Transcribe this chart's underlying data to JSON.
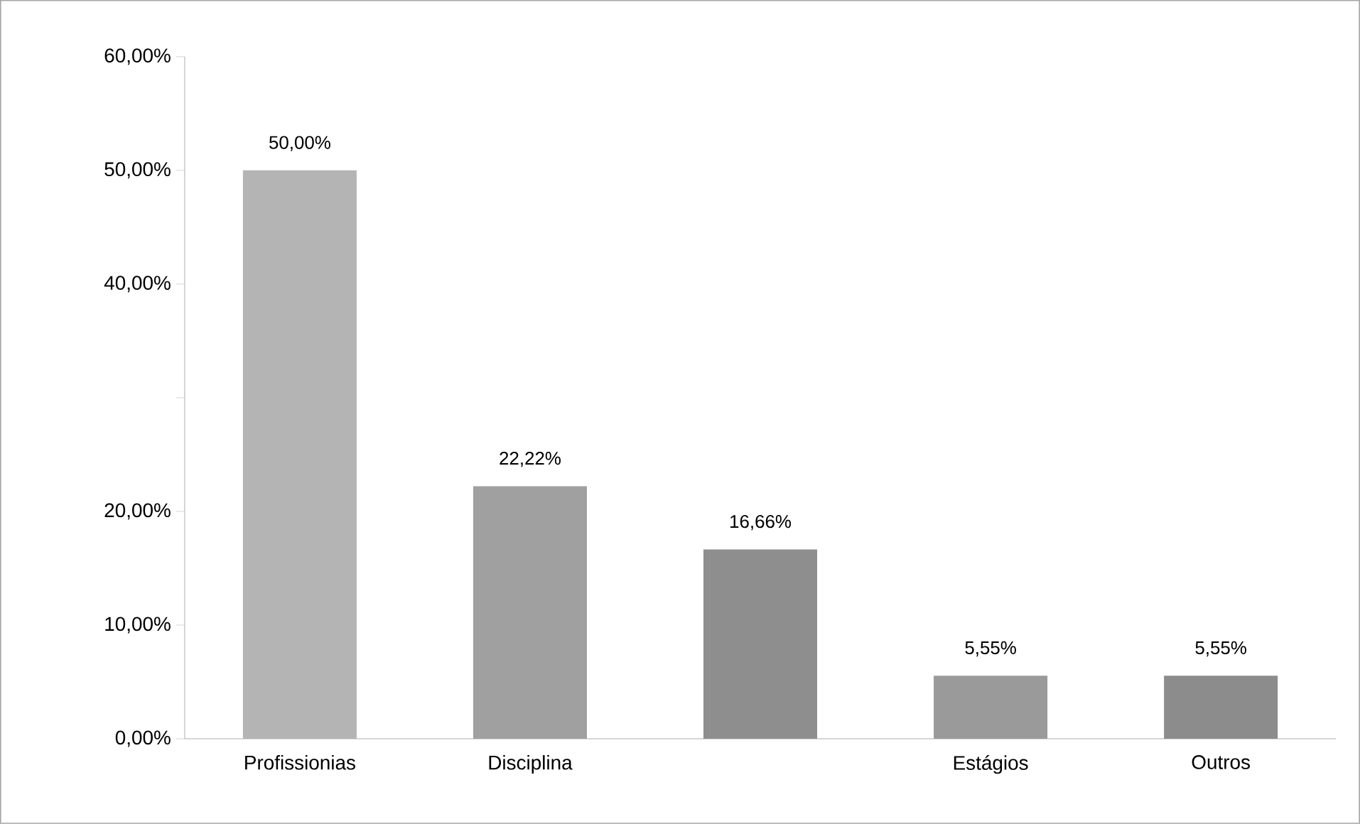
{
  "chart_data": {
    "type": "bar",
    "categories": [
      "Profissionias",
      "Disciplina",
      null,
      "Estágios",
      "Outros"
    ],
    "values": [
      50,
      22.22,
      16.66,
      5.55,
      5.55
    ],
    "value_labels": [
      "50,00%",
      "22,22%",
      "16,66%",
      "5,55%",
      "5,55%"
    ],
    "colors": [
      "#b4b4b4",
      "#a0a0a0",
      "#8e8e8e",
      "#9a9a9a",
      "#8c8c8c"
    ],
    "ylim": [
      0,
      60
    ],
    "yticks": [
      {
        "value": 0,
        "label": "0,00%"
      },
      {
        "value": 10,
        "label": "10,00%"
      },
      {
        "value": 20,
        "label": "20,00%"
      },
      {
        "value": 30,
        "label": null
      },
      {
        "value": 40,
        "label": "40,00%"
      },
      {
        "value": 50,
        "label": "50,00%"
      },
      {
        "value": 60,
        "label": "60,00%"
      }
    ]
  }
}
